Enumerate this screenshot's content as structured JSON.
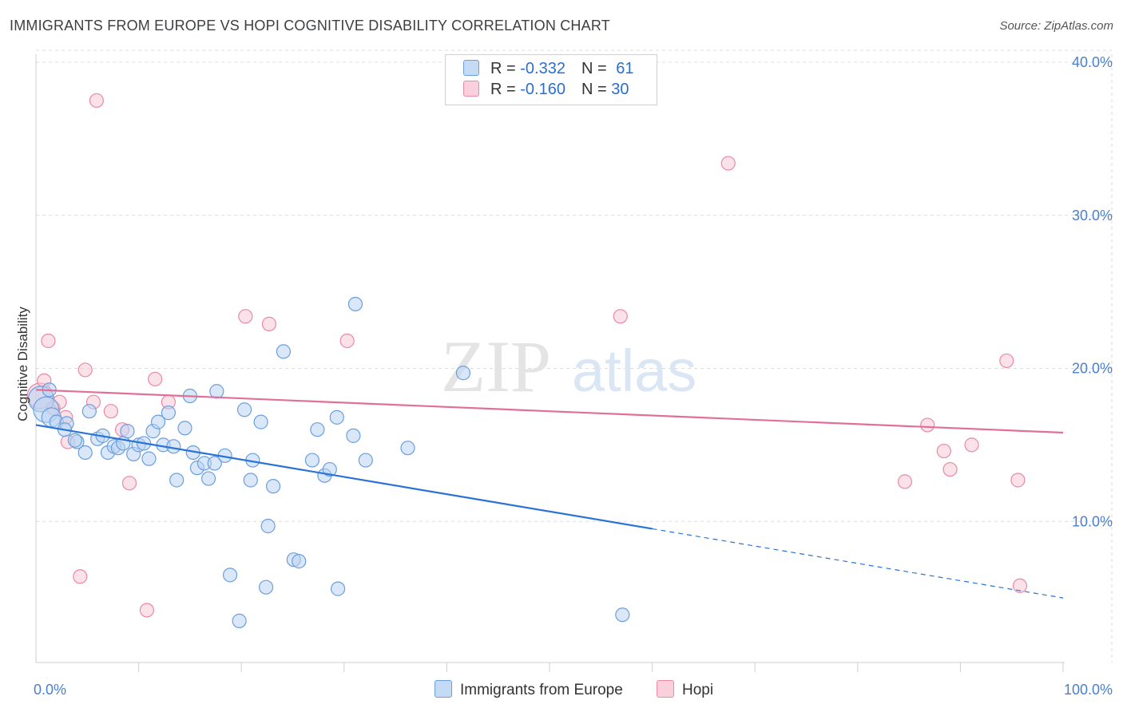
{
  "title": "IMMIGRANTS FROM EUROPE VS HOPI COGNITIVE DISABILITY CORRELATION CHART",
  "source": "Source: ZipAtlas.com",
  "watermark": {
    "part1": "ZIP",
    "part2": "atlas"
  },
  "legend": {
    "rows": [
      {
        "r_label": "R = ",
        "r_value": "-0.332",
        "n_label": "N = ",
        "n_value": "61"
      },
      {
        "r_label": "R = ",
        "r_value": "-0.160",
        "n_label": "N = ",
        "n_value": "30"
      }
    ]
  },
  "bottom_legend": [
    "Immigrants from Europe",
    "Hopi"
  ],
  "colors": {
    "blue_fill": "#b9d3f2",
    "blue_stroke": "#6a9fdf",
    "blue_line": "#2a72d6",
    "pink_fill": "#f8c8d6",
    "pink_stroke": "#e88aa8",
    "pink_line": "#e0709a",
    "axis_text": "#4a7fcf",
    "grid": "#dcdcdc"
  },
  "chart_data": {
    "type": "scatter",
    "title": "IMMIGRANTS FROM EUROPE VS HOPI COGNITIVE DISABILITY CORRELATION CHART",
    "xlabel": "",
    "ylabel": "Cognitive Disability",
    "xlim": [
      0,
      100
    ],
    "ylim": [
      0,
      40
    ],
    "x_tick_labels": [
      "0.0%",
      "100.0%"
    ],
    "y_ticks": [
      10,
      20,
      30,
      40
    ],
    "y_tick_labels": [
      "10.0%",
      "20.0%",
      "30.0%",
      "40.0%"
    ],
    "grid": true,
    "legend_position": "top-center",
    "series": [
      {
        "name": "Immigrants from Europe",
        "R": -0.332,
        "N": 61,
        "trend": {
          "x0": 0,
          "y0": 16.3,
          "x1": 100,
          "y1": 5.0,
          "solid_until": 60
        },
        "points": [
          {
            "x": 0.5,
            "y": 18.0,
            "s": "l"
          },
          {
            "x": 1.0,
            "y": 17.3,
            "s": "l"
          },
          {
            "x": 1.5,
            "y": 16.8,
            "s": "m"
          },
          {
            "x": 2.0,
            "y": 16.5
          },
          {
            "x": 3.0,
            "y": 16.4
          },
          {
            "x": 2.8,
            "y": 16.0
          },
          {
            "x": 4.0,
            "y": 15.2
          },
          {
            "x": 3.8,
            "y": 15.3
          },
          {
            "x": 4.8,
            "y": 14.5
          },
          {
            "x": 5.2,
            "y": 17.2
          },
          {
            "x": 6.0,
            "y": 15.4
          },
          {
            "x": 6.5,
            "y": 15.6
          },
          {
            "x": 7.0,
            "y": 14.5
          },
          {
            "x": 7.6,
            "y": 14.9
          },
          {
            "x": 8.0,
            "y": 14.8
          },
          {
            "x": 8.5,
            "y": 15.1
          },
          {
            "x": 8.9,
            "y": 15.9
          },
          {
            "x": 9.5,
            "y": 14.4
          },
          {
            "x": 10.0,
            "y": 15.0
          },
          {
            "x": 10.5,
            "y": 15.1
          },
          {
            "x": 11.0,
            "y": 14.1
          },
          {
            "x": 11.4,
            "y": 15.9
          },
          {
            "x": 11.9,
            "y": 16.5
          },
          {
            "x": 12.4,
            "y": 15.0
          },
          {
            "x": 12.9,
            "y": 17.1
          },
          {
            "x": 13.4,
            "y": 14.9
          },
          {
            "x": 13.7,
            "y": 12.7
          },
          {
            "x": 14.5,
            "y": 16.1
          },
          {
            "x": 15.0,
            "y": 18.2
          },
          {
            "x": 15.3,
            "y": 14.5
          },
          {
            "x": 15.7,
            "y": 13.5
          },
          {
            "x": 16.4,
            "y": 13.8
          },
          {
            "x": 16.8,
            "y": 12.8
          },
          {
            "x": 17.4,
            "y": 13.8
          },
          {
            "x": 17.6,
            "y": 18.5
          },
          {
            "x": 18.4,
            "y": 14.3
          },
          {
            "x": 18.9,
            "y": 6.5
          },
          {
            "x": 19.8,
            "y": 3.5
          },
          {
            "x": 20.3,
            "y": 17.3
          },
          {
            "x": 20.9,
            "y": 12.7
          },
          {
            "x": 21.1,
            "y": 14.0
          },
          {
            "x": 21.9,
            "y": 16.5
          },
          {
            "x": 22.6,
            "y": 9.7
          },
          {
            "x": 22.4,
            "y": 5.7
          },
          {
            "x": 23.1,
            "y": 12.3
          },
          {
            "x": 24.1,
            "y": 21.1
          },
          {
            "x": 25.1,
            "y": 7.5
          },
          {
            "x": 25.6,
            "y": 7.4
          },
          {
            "x": 26.9,
            "y": 14.0
          },
          {
            "x": 27.4,
            "y": 16.0
          },
          {
            "x": 28.1,
            "y": 13.0
          },
          {
            "x": 28.6,
            "y": 13.4
          },
          {
            "x": 29.3,
            "y": 16.8
          },
          {
            "x": 29.4,
            "y": 5.6
          },
          {
            "x": 30.9,
            "y": 15.6
          },
          {
            "x": 31.1,
            "y": 24.2
          },
          {
            "x": 32.1,
            "y": 14.0
          },
          {
            "x": 36.2,
            "y": 14.8
          },
          {
            "x": 41.6,
            "y": 19.7
          },
          {
            "x": 57.1,
            "y": 3.9
          },
          {
            "x": 1.3,
            "y": 18.6
          }
        ]
      },
      {
        "name": "Hopi",
        "R": -0.16,
        "N": 30,
        "trend": {
          "x0": 0,
          "y0": 18.6,
          "x1": 100,
          "y1": 15.8,
          "solid_until": 100
        },
        "points": [
          {
            "x": 0.4,
            "y": 18.2,
            "s": "l"
          },
          {
            "x": 0.8,
            "y": 19.2
          },
          {
            "x": 1.2,
            "y": 21.8
          },
          {
            "x": 1.7,
            "y": 17.4
          },
          {
            "x": 2.3,
            "y": 17.8
          },
          {
            "x": 2.9,
            "y": 16.8
          },
          {
            "x": 3.1,
            "y": 15.2
          },
          {
            "x": 4.3,
            "y": 6.4
          },
          {
            "x": 4.8,
            "y": 19.9
          },
          {
            "x": 5.6,
            "y": 17.8
          },
          {
            "x": 5.9,
            "y": 37.5
          },
          {
            "x": 7.3,
            "y": 17.2
          },
          {
            "x": 8.4,
            "y": 16.0
          },
          {
            "x": 9.1,
            "y": 12.5
          },
          {
            "x": 10.8,
            "y": 4.2
          },
          {
            "x": 11.6,
            "y": 19.3
          },
          {
            "x": 12.9,
            "y": 17.8
          },
          {
            "x": 20.4,
            "y": 23.4
          },
          {
            "x": 22.7,
            "y": 22.9
          },
          {
            "x": 30.3,
            "y": 21.8
          },
          {
            "x": 56.9,
            "y": 23.4
          },
          {
            "x": 67.4,
            "y": 33.4
          },
          {
            "x": 84.6,
            "y": 12.6
          },
          {
            "x": 86.8,
            "y": 16.3
          },
          {
            "x": 88.4,
            "y": 14.6
          },
          {
            "x": 89.0,
            "y": 13.4
          },
          {
            "x": 91.1,
            "y": 15.0
          },
          {
            "x": 94.5,
            "y": 20.5
          },
          {
            "x": 95.6,
            "y": 12.7
          },
          {
            "x": 95.8,
            "y": 5.8
          }
        ]
      }
    ]
  }
}
